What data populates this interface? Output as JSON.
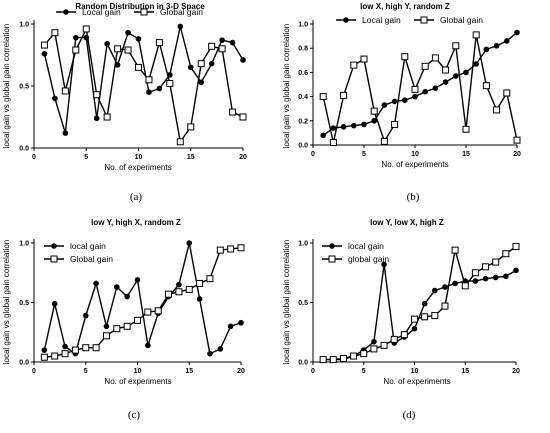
{
  "chart_data": [
    {
      "type": "line",
      "panel": "a",
      "caption": "(a)",
      "title": "Random Distribution in 3-D Space",
      "xlabel": "No. of experiments",
      "ylabel": "local gain vs global gain correlation",
      "xlim": [
        0,
        20
      ],
      "ylim": [
        0,
        1.0
      ],
      "xticks": [
        "0",
        "5",
        "10",
        "15",
        "20"
      ],
      "yticks": [
        "0.0",
        "0.5",
        "1.0"
      ],
      "legend_position": "top",
      "series": [
        {
          "name": "Local gain",
          "marker": "circle",
          "x": [
            1,
            2,
            3,
            4,
            5,
            6,
            7,
            8,
            9,
            10,
            11,
            12,
            13,
            14,
            15,
            16,
            17,
            18,
            19,
            20
          ],
          "y": [
            0.76,
            0.4,
            0.12,
            0.89,
            0.89,
            0.24,
            0.84,
            0.67,
            0.93,
            0.88,
            0.45,
            0.48,
            0.59,
            0.98,
            0.65,
            0.53,
            0.68,
            0.87,
            0.85,
            0.71
          ]
        },
        {
          "name": "Global gain",
          "marker": "square",
          "x": [
            1,
            2,
            3,
            4,
            5,
            6,
            7,
            8,
            9,
            10,
            11,
            12,
            13,
            14,
            15,
            16,
            17,
            18,
            19,
            20
          ],
          "y": [
            0.83,
            0.93,
            0.46,
            0.79,
            0.96,
            0.43,
            0.25,
            0.8,
            0.79,
            0.65,
            0.55,
            0.85,
            0.52,
            0.05,
            0.17,
            0.68,
            0.82,
            0.8,
            0.29,
            0.25
          ]
        }
      ]
    },
    {
      "type": "line",
      "panel": "b",
      "caption": "(b)",
      "title": "low X, high Y, random Z",
      "xlabel": "No. of experiments",
      "ylabel": "",
      "xlim": [
        0,
        20
      ],
      "ylim": [
        0,
        1.0
      ],
      "xticks": [
        "0",
        "5",
        "10",
        "15",
        "20"
      ],
      "yticks": [
        "0.0",
        "0.2",
        "0.4",
        "0.6",
        "0.8",
        "1.0"
      ],
      "legend_position": "top",
      "series": [
        {
          "name": "Local gain",
          "marker": "circle",
          "x": [
            1,
            2,
            3,
            4,
            5,
            6,
            7,
            8,
            9,
            10,
            11,
            12,
            13,
            14,
            15,
            16,
            17,
            18,
            19,
            20
          ],
          "y": [
            0.08,
            0.14,
            0.15,
            0.16,
            0.17,
            0.2,
            0.33,
            0.36,
            0.37,
            0.4,
            0.44,
            0.47,
            0.52,
            0.57,
            0.6,
            0.67,
            0.79,
            0.82,
            0.86,
            0.93
          ]
        },
        {
          "name": "Global gain",
          "marker": "square",
          "x": [
            1,
            2,
            3,
            4,
            5,
            6,
            7,
            8,
            9,
            10,
            11,
            12,
            13,
            14,
            15,
            16,
            17,
            18,
            19,
            20
          ],
          "y": [
            0.4,
            0.02,
            0.41,
            0.66,
            0.71,
            0.28,
            0.03,
            0.17,
            0.73,
            0.46,
            0.65,
            0.72,
            0.62,
            0.82,
            0.13,
            0.91,
            0.49,
            0.29,
            0.43,
            0.04
          ]
        }
      ]
    },
    {
      "type": "line",
      "panel": "c",
      "caption": "(c)",
      "title": "low Y, high X, random Z",
      "xlabel": "No. of experiments",
      "ylabel": "local gain vs global gain correlation",
      "xlim": [
        0,
        20
      ],
      "ylim": [
        0,
        1.0
      ],
      "xticks": [
        "0",
        "5",
        "10",
        "15",
        "20"
      ],
      "yticks": [
        "0.0",
        "0.5",
        "1.0"
      ],
      "legend_position": "top-left",
      "series": [
        {
          "name": "local gain",
          "marker": "circle",
          "x": [
            1,
            2,
            3,
            4,
            5,
            6,
            7,
            8,
            9,
            10,
            11,
            12,
            13,
            14,
            15,
            16,
            17,
            18,
            19,
            20
          ],
          "y": [
            0.1,
            0.49,
            0.13,
            0.07,
            0.39,
            0.66,
            0.3,
            0.63,
            0.55,
            0.69,
            0.14,
            0.41,
            0.55,
            0.65,
            1.0,
            0.53,
            0.07,
            0.11,
            0.3,
            0.33
          ]
        },
        {
          "name": "Global gain",
          "marker": "square",
          "x": [
            1,
            2,
            3,
            4,
            5,
            6,
            7,
            8,
            9,
            10,
            11,
            12,
            13,
            14,
            15,
            16,
            17,
            18,
            19,
            20
          ],
          "y": [
            0.04,
            0.05,
            0.07,
            0.1,
            0.12,
            0.12,
            0.22,
            0.28,
            0.3,
            0.35,
            0.42,
            0.43,
            0.57,
            0.59,
            0.61,
            0.66,
            0.7,
            0.94,
            0.95,
            0.96
          ]
        }
      ]
    },
    {
      "type": "line",
      "panel": "d",
      "caption": "(d)",
      "title": "low Y, low X, high Z",
      "xlabel": "No. of experiments",
      "ylabel": "",
      "xlim": [
        0,
        20
      ],
      "ylim": [
        0,
        1.0
      ],
      "xticks": [
        "0",
        "5",
        "10",
        "15",
        "20"
      ],
      "yticks": [
        "0.0",
        "0.5",
        "1.0"
      ],
      "legend_position": "top-left",
      "series": [
        {
          "name": "local gain",
          "marker": "circle",
          "x": [
            1,
            2,
            3,
            4,
            5,
            6,
            7,
            8,
            9,
            10,
            11,
            12,
            13,
            14,
            15,
            16,
            17,
            18,
            19,
            20
          ],
          "y": [
            0.02,
            0.02,
            0.02,
            0.05,
            0.1,
            0.17,
            0.82,
            0.16,
            0.21,
            0.28,
            0.49,
            0.6,
            0.63,
            0.66,
            0.68,
            0.68,
            0.7,
            0.71,
            0.72,
            0.77
          ]
        },
        {
          "name": "global gain",
          "marker": "square",
          "x": [
            1,
            2,
            3,
            4,
            5,
            6,
            7,
            8,
            9,
            10,
            11,
            12,
            13,
            14,
            15,
            16,
            17,
            18,
            19,
            20
          ],
          "y": [
            0.02,
            0.02,
            0.03,
            0.05,
            0.07,
            0.11,
            0.14,
            0.19,
            0.23,
            0.36,
            0.38,
            0.39,
            0.47,
            0.94,
            0.64,
            0.75,
            0.8,
            0.84,
            0.91,
            0.97
          ]
        }
      ]
    }
  ]
}
